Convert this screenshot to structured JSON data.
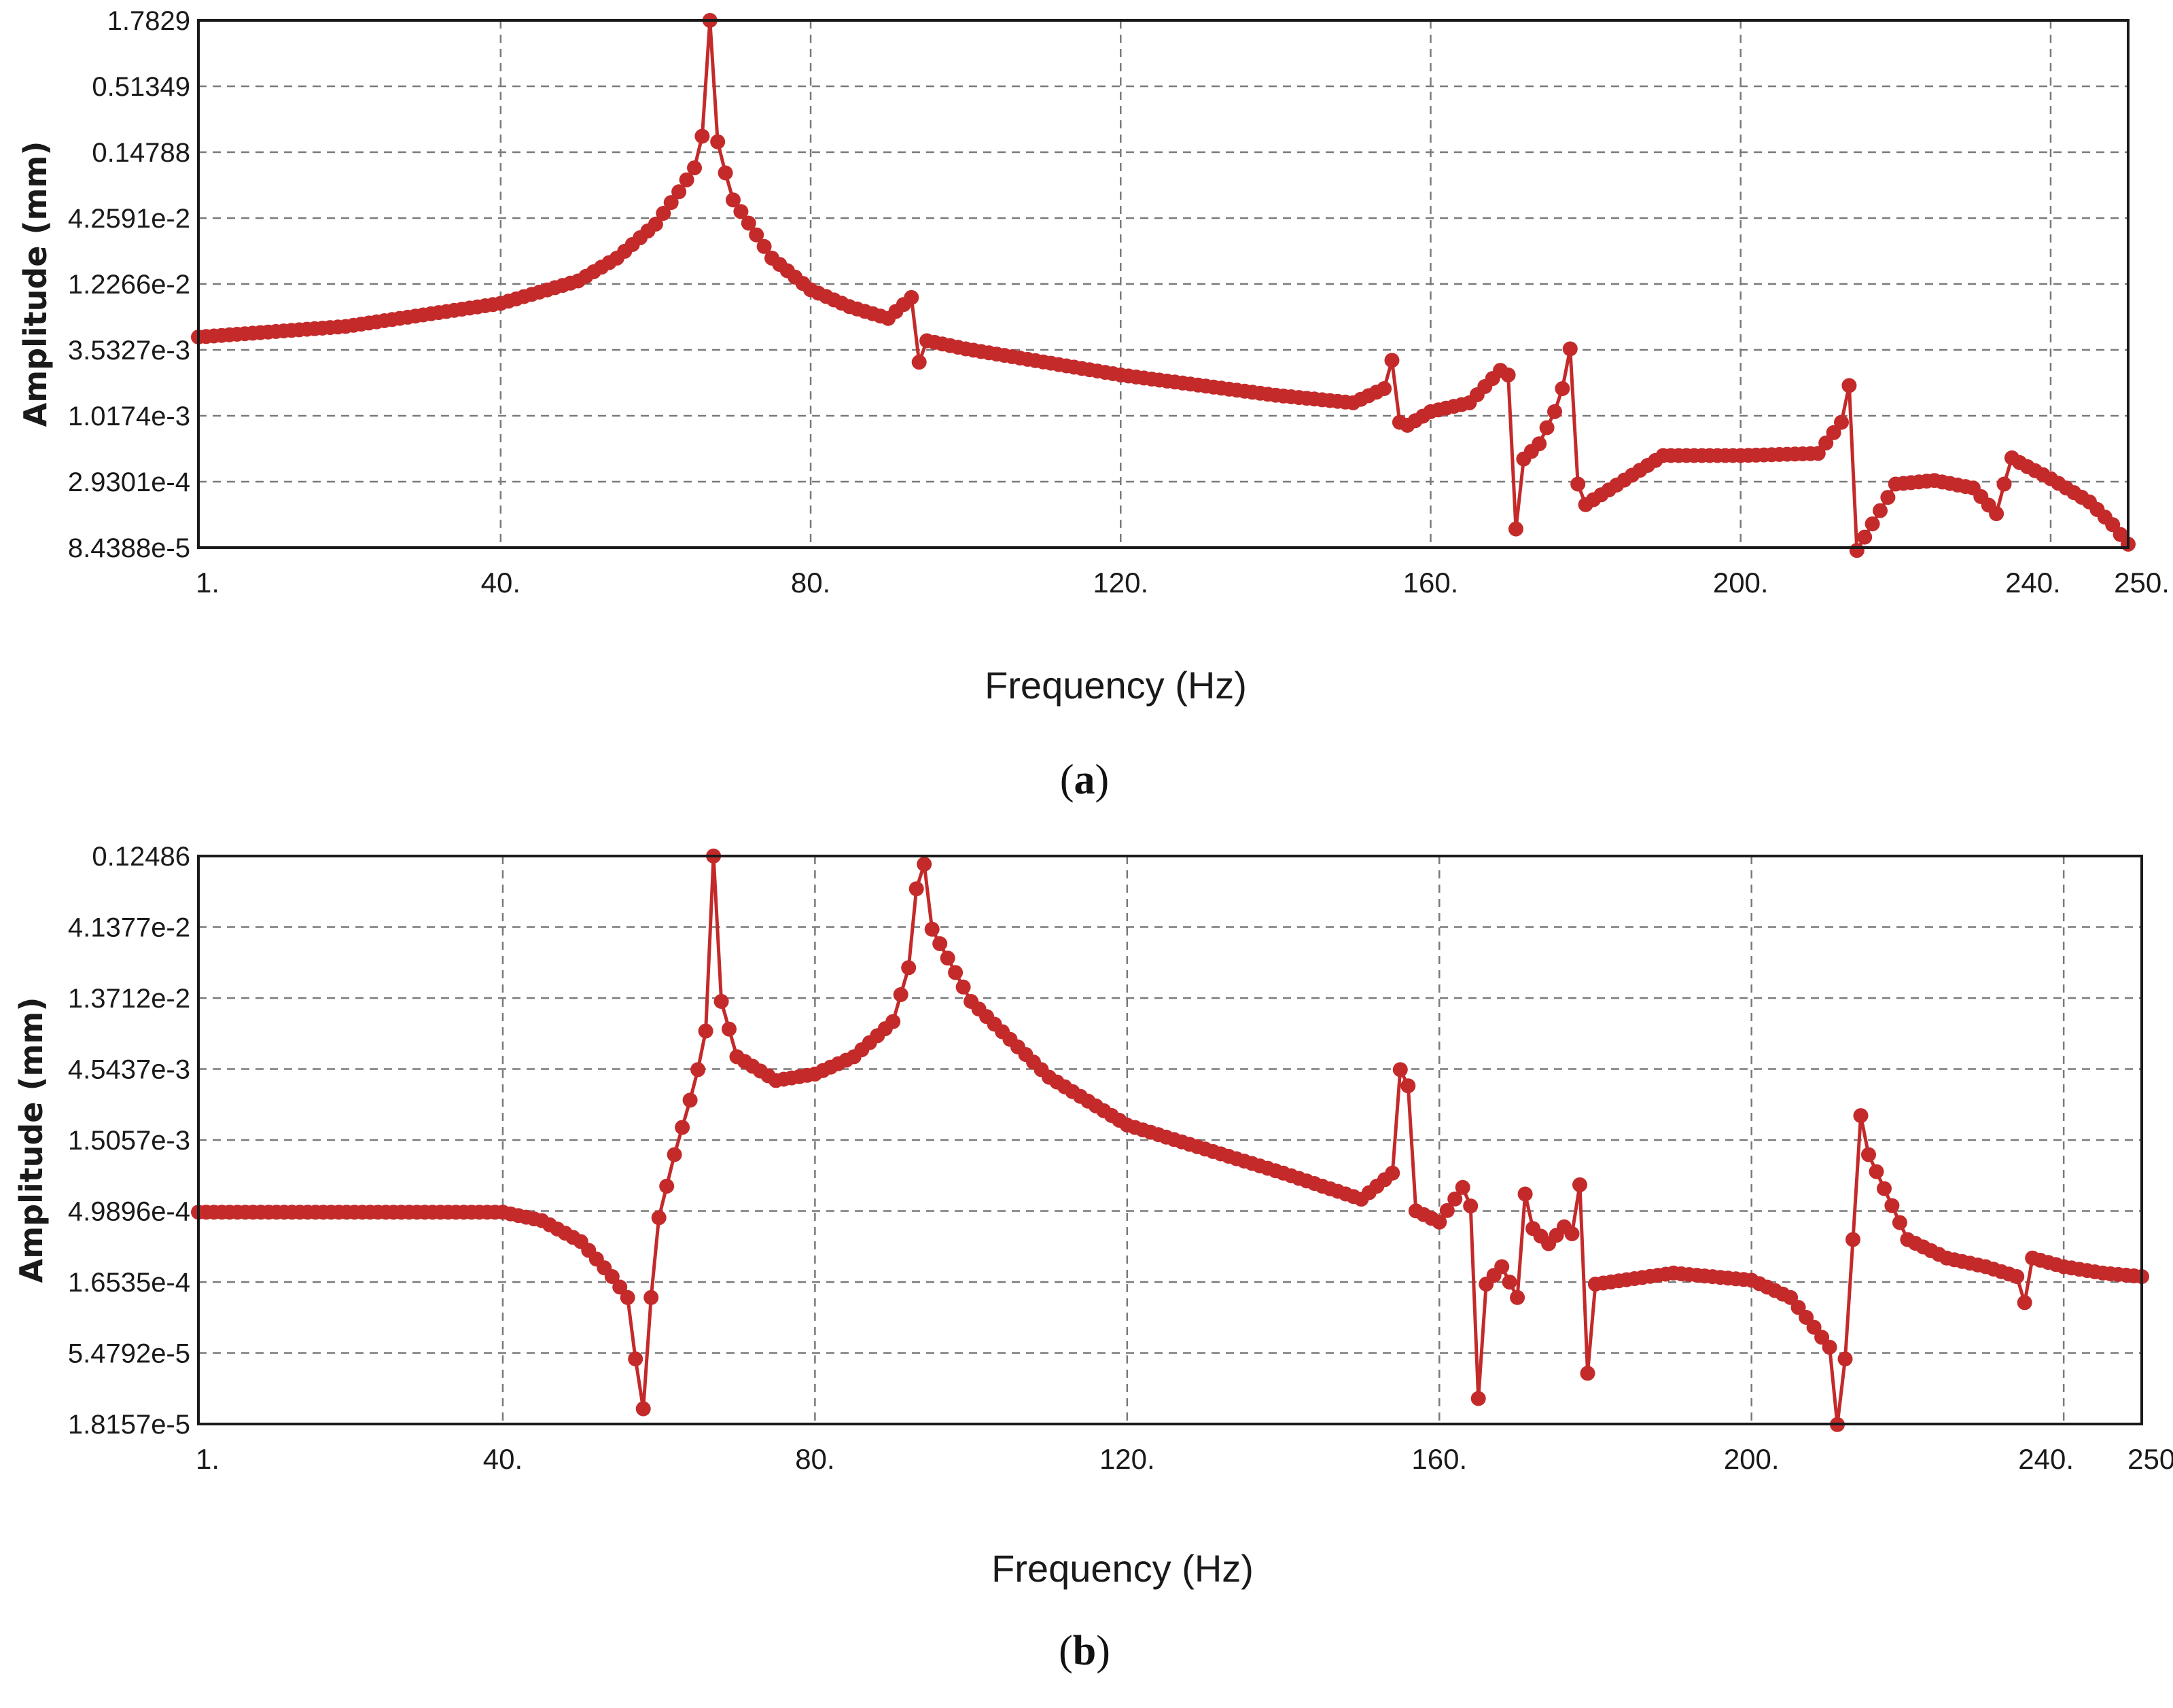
{
  "colors": {
    "series": "#c42a2a",
    "frame": "#1a1a1a",
    "grid": "#7a7a7a"
  },
  "chart_data": [
    {
      "type": "line",
      "panel_label": "a",
      "xlabel": "Frequency (Hz)",
      "ylabel": "Amplitude (mm)",
      "y_scale": "log",
      "xlim": [
        1,
        250
      ],
      "ylim": [
        8.4388e-05,
        1.7829
      ],
      "grid": true,
      "x_ticks": [
        1,
        40,
        80,
        120,
        160,
        200,
        240,
        250
      ],
      "x_tick_labels": [
        "1.",
        "40.",
        "80.",
        "120.",
        "160.",
        "200.",
        "240.",
        "250."
      ],
      "y_ticks": [
        8.4388e-05,
        0.00029301,
        0.0010174,
        0.0035327,
        0.012266,
        0.042591,
        0.14788,
        0.51349,
        1.7829
      ],
      "y_tick_labels": [
        "8.4388e-5",
        "2.9301e-4",
        "1.0174e-3",
        "3.5327e-3",
        "1.2266e-2",
        "4.2591e-2",
        "0.14788",
        "0.51349",
        "1.7829"
      ],
      "series": [
        {
          "x": [
            1,
            20,
            40,
            50,
            55,
            60,
            63,
            65,
            66,
            67,
            68,
            69,
            70,
            75,
            80,
            85,
            90,
            93,
            94,
            95,
            100,
            120,
            140,
            150,
            154,
            155,
            156,
            157,
            160,
            165,
            169,
            170,
            171,
            172,
            174,
            176,
            177,
            178,
            179,
            180,
            190,
            200,
            210,
            213,
            214,
            215,
            220,
            225,
            230,
            233,
            234,
            235,
            236,
            240,
            245,
            248,
            250
          ],
          "y": [
            0.0045,
            0.0055,
            0.0085,
            0.013,
            0.02,
            0.038,
            0.07,
            0.11,
            0.2,
            1.7829,
            0.18,
            0.1,
            0.06,
            0.02,
            0.011,
            0.008,
            0.0064,
            0.0095,
            0.0028,
            0.0042,
            0.0036,
            0.0022,
            0.0015,
            0.0013,
            0.0017,
            0.0029,
            0.0009,
            0.00085,
            0.0011,
            0.0013,
            0.0024,
            0.0022,
            0.00012,
            0.00045,
            0.0006,
            0.0011,
            0.0017,
            0.0036,
            0.00028,
            0.00019,
            0.00048,
            0.00048,
            0.0005,
            0.0009,
            0.0018,
            8e-05,
            0.00028,
            0.0003,
            0.00026,
            0.00016,
            0.00028,
            0.00046,
            0.00042,
            0.00031,
            0.0002,
            0.00013,
            9e-05
          ]
        }
      ]
    },
    {
      "type": "line",
      "panel_label": "b",
      "xlabel": "Frequency (Hz)",
      "ylabel": "Amplitude (mm)",
      "y_scale": "log",
      "xlim": [
        1,
        250
      ],
      "ylim": [
        1.8157e-05,
        0.12486
      ],
      "grid": true,
      "x_ticks": [
        1,
        40,
        80,
        120,
        160,
        200,
        240,
        250
      ],
      "x_tick_labels": [
        "1.",
        "40.",
        "80.",
        "120.",
        "160.",
        "200.",
        "240.",
        "250."
      ],
      "y_ticks": [
        1.8157e-05,
        5.4792e-05,
        0.00016535,
        0.00049896,
        0.0015057,
        0.0045437,
        0.013712,
        0.041377,
        0.12486
      ],
      "y_tick_labels": [
        "1.8157e-5",
        "5.4792e-5",
        "1.6535e-4",
        "4.9896e-4",
        "1.5057e-3",
        "4.5437e-3",
        "1.3712e-2",
        "4.1377e-2",
        "0.12486"
      ],
      "series": [
        {
          "x": [
            1,
            20,
            40,
            45,
            50,
            54,
            56,
            57,
            58,
            59,
            60,
            62,
            64,
            65,
            66,
            67,
            68,
            70,
            75,
            80,
            85,
            90,
            92,
            93,
            94,
            95,
            100,
            110,
            120,
            140,
            150,
            154,
            155,
            156,
            157,
            160,
            163,
            164,
            165,
            166,
            168,
            170,
            171,
            172,
            174,
            176,
            177,
            178,
            179,
            180,
            190,
            200,
            205,
            210,
            211,
            212,
            213,
            214,
            215,
            220,
            225,
            230,
            234,
            235,
            236,
            240,
            245,
            250
          ],
          "y": [
            0.00049,
            0.00049,
            0.00049,
            0.00043,
            0.00031,
            0.00018,
            0.00013,
            5e-05,
            2.3e-05,
            0.00013,
            0.00045,
            0.0012,
            0.0028,
            0.0045,
            0.0082,
            0.12486,
            0.013,
            0.0055,
            0.0038,
            0.0042,
            0.0055,
            0.0095,
            0.022,
            0.075,
            0.11,
            0.04,
            0.013,
            0.004,
            0.0019,
            0.0009,
            0.0006,
            0.0009,
            0.0045,
            0.0035,
            0.0005,
            0.00042,
            0.00072,
            0.00054,
            2.7e-05,
            0.00016,
            0.00021,
            0.00013,
            0.00065,
            0.00038,
            0.0003,
            0.00039,
            0.00035,
            0.00075,
            4e-05,
            0.00016,
            0.00019,
            0.00017,
            0.00013,
            6e-05,
            1.8e-05,
            5e-05,
            0.00032,
            0.0022,
            0.0012,
            0.00032,
            0.00024,
            0.00021,
            0.00018,
            0.00012,
            0.00024,
            0.00021,
            0.00019,
            0.00018
          ]
        }
      ]
    }
  ]
}
